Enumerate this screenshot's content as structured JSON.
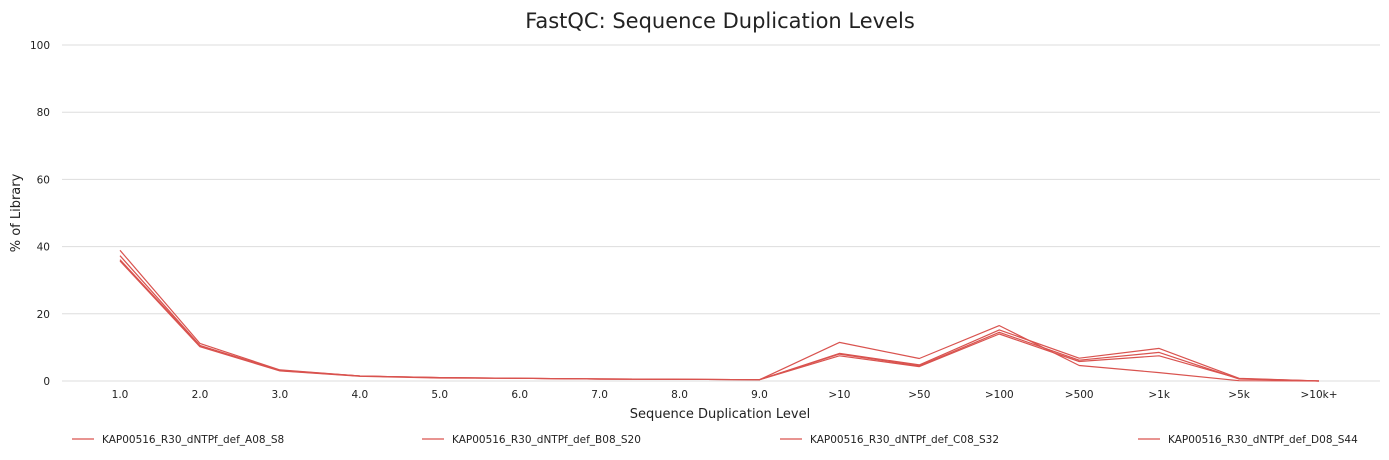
{
  "chart_data": {
    "type": "line",
    "title": "FastQC: Sequence Duplication Levels",
    "xlabel": "Sequence Duplication Level",
    "ylabel": "% of Library",
    "categories": [
      "1.0",
      "2.0",
      "3.0",
      "4.0",
      "5.0",
      "6.0",
      "7.0",
      "8.0",
      "9.0",
      ">10",
      ">50",
      ">100",
      ">500",
      ">1k",
      ">5k",
      ">10k+"
    ],
    "ylim": [
      0,
      100
    ],
    "yticks": [
      0,
      20,
      40,
      60,
      80,
      100
    ],
    "grid": true,
    "legend_position": "bottom",
    "line_color": "#d9534f",
    "series": [
      {
        "name": "KAP00516_R30_dNTPf_def_A08_S8",
        "values": [
          38.9,
          11.2,
          3.3,
          1.5,
          1.0,
          0.8,
          0.6,
          0.5,
          0.4,
          11.5,
          6.7,
          16.5,
          4.6,
          2.5,
          0.1,
          0.0
        ]
      },
      {
        "name": "KAP00516_R30_dNTPf_def_B08_S20",
        "values": [
          37.3,
          10.6,
          3.1,
          1.5,
          1.0,
          0.8,
          0.6,
          0.5,
          0.4,
          8.2,
          4.8,
          15.2,
          6.8,
          9.7,
          0.8,
          0.0
        ]
      },
      {
        "name": "KAP00516_R30_dNTPf_def_C08_S32",
        "values": [
          35.7,
          10.2,
          3.0,
          1.4,
          0.9,
          0.8,
          0.6,
          0.5,
          0.4,
          7.5,
          4.3,
          14.0,
          5.8,
          7.5,
          0.7,
          0.0
        ]
      },
      {
        "name": "KAP00516_R30_dNTPf_def_D08_S44",
        "values": [
          36.1,
          10.5,
          3.2,
          1.5,
          1.0,
          0.8,
          0.6,
          0.5,
          0.4,
          8.0,
          4.5,
          14.5,
          6.2,
          8.5,
          0.6,
          0.0
        ]
      }
    ]
  }
}
